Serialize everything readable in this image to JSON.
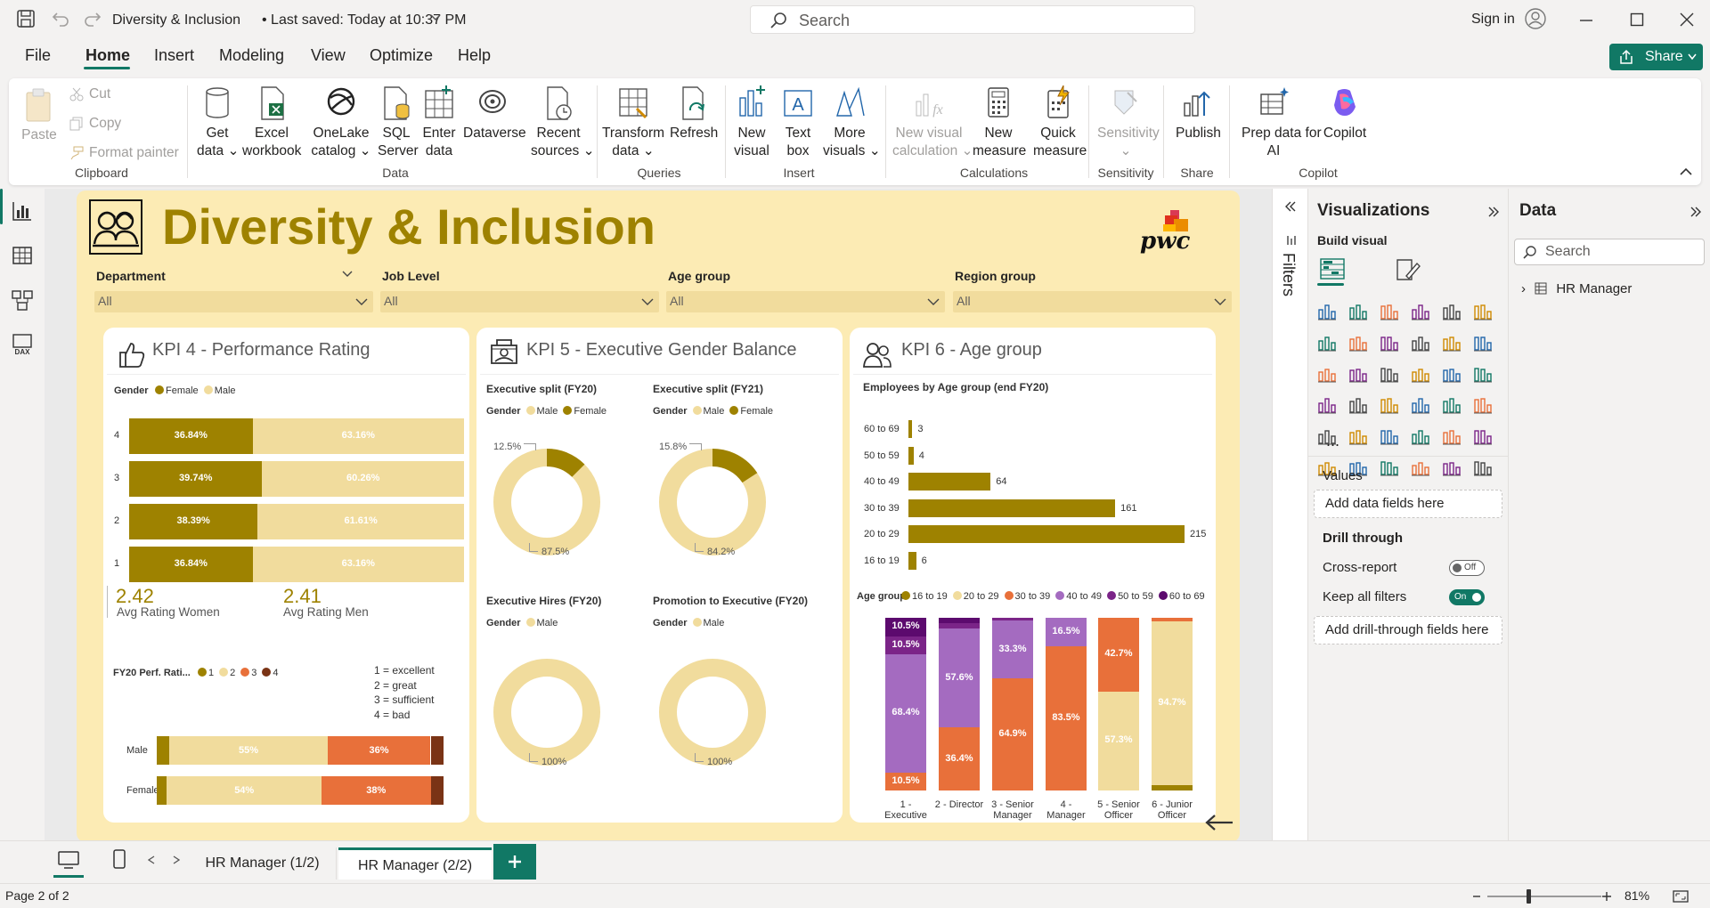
{
  "titlebar": {
    "doc_title": "Diversity & Inclusion",
    "saved": "• Last saved: Today at 10:37 PM",
    "search_placeholder": "Search",
    "sign_in": "Sign in"
  },
  "menu": {
    "items": [
      "File",
      "Home",
      "Insert",
      "Modeling",
      "View",
      "Optimize",
      "Help"
    ],
    "share": "Share"
  },
  "ribbon": {
    "paste": "Paste",
    "cut": "Cut",
    "copy": "Copy",
    "format_painter": "Format painter",
    "get_data": [
      "Get",
      "data"
    ],
    "excel": [
      "Excel",
      "workbook"
    ],
    "onelake": [
      "OneLake",
      "catalog"
    ],
    "sql": [
      "SQL",
      "Server"
    ],
    "enter": [
      "Enter",
      "data"
    ],
    "dataverse": "Dataverse",
    "recent": [
      "Recent",
      "sources"
    ],
    "transform": [
      "Transform",
      "data"
    ],
    "refresh": "Refresh",
    "new_visual": [
      "New",
      "visual"
    ],
    "text_box": [
      "Text",
      "box"
    ],
    "more_visuals": [
      "More",
      "visuals"
    ],
    "new_calc": [
      "New visual",
      "calculation"
    ],
    "new_measure": [
      "New",
      "measure"
    ],
    "quick_measure": [
      "Quick",
      "measure"
    ],
    "sensitivity": "Sensitivity",
    "publish": "Publish",
    "copilot": [
      "Prep data for",
      "AI",
      "Copilot"
    ],
    "groups": [
      "Clipboard",
      "Data",
      "Queries",
      "Insert",
      "Calculations",
      "Sensitivity",
      "Share",
      "Copilot"
    ]
  },
  "report": {
    "title": "Diversity & Inclusion",
    "logo_text": "pwc",
    "slicers": [
      {
        "label": "Department",
        "value": "All"
      },
      {
        "label": "Job Level",
        "value": "All"
      },
      {
        "label": "Age group",
        "value": "All"
      },
      {
        "label": "Region group",
        "value": "All"
      }
    ],
    "kpi4": {
      "title": "KPI 4 - Performance Rating",
      "legend_title": "Gender",
      "legend": [
        "Female",
        "Male"
      ],
      "rows": [
        {
          "label": "4",
          "female": "36.84%",
          "male": "63.16%",
          "f": 36.84
        },
        {
          "label": "3",
          "female": "39.74%",
          "male": "60.26%",
          "f": 39.74
        },
        {
          "label": "2",
          "female": "38.39%",
          "male": "61.61%",
          "f": 38.39
        },
        {
          "label": "1",
          "female": "36.84%",
          "male": "63.16%",
          "f": 36.84
        }
      ],
      "avg_women": "2.42",
      "avg_women_label": "Avg Rating Women",
      "avg_men": "2.41",
      "avg_men_label": "Avg Rating Men",
      "perf_legend_title": "FY20 Perf. Rati...",
      "perf_legend": [
        "1",
        "2",
        "3",
        "4"
      ],
      "scale": [
        "1 = excellent",
        "2 = great",
        "3 = sufficient",
        "4 = bad"
      ],
      "perf_rows": [
        {
          "label": "Male",
          "p2": "55%",
          "p3": "36%"
        },
        {
          "label": "Female",
          "p2": "54%",
          "p3": "38%"
        }
      ]
    },
    "kpi5": {
      "title": "KPI 5 - Executive Gender Balance",
      "donuts": [
        {
          "title": "Executive split (FY20)",
          "legend_title": "Gender",
          "legend": [
            "Male",
            "Female"
          ],
          "small": "12.5%",
          "big": "87.5%",
          "frac": 0.125
        },
        {
          "title": "Executive split (FY21)",
          "legend_title": "Gender",
          "legend": [
            "Male",
            "Female"
          ],
          "small": "15.8%",
          "big": "84.2%",
          "frac": 0.158
        },
        {
          "title": "Executive Hires (FY20)",
          "legend_title": "Gender",
          "legend": [
            "Male"
          ],
          "big": "100%",
          "frac": 0
        },
        {
          "title": "Promotion to Executive (FY20)",
          "legend_title": "Gender",
          "legend": [
            "Male"
          ],
          "big": "100%",
          "frac": 0
        }
      ]
    },
    "kpi6": {
      "title": "KPI 6 - Age group",
      "bar_title": "Employees by Age group (end FY20)",
      "bars": [
        {
          "label": "60 to 69",
          "value": 3
        },
        {
          "label": "50 to 59",
          "value": 4
        },
        {
          "label": "40 to 49",
          "value": 64
        },
        {
          "label": "30 to 39",
          "value": 161
        },
        {
          "label": "20 to 29",
          "value": 215
        },
        {
          "label": "16 to 19",
          "value": 6
        }
      ],
      "legend_title": "Age group",
      "legend": [
        "16 to 19",
        "20 to 29",
        "30 to 39",
        "40 to 49",
        "50 to 59",
        "60 to 69"
      ],
      "colors": [
        "#9e8200",
        "#f1dc9d",
        "#e8703a",
        "#a46bc0",
        "#7b2488",
        "#5c0a6e"
      ],
      "stacks": [
        {
          "label": [
            "1 -",
            "Executive"
          ],
          "segments": [
            [
              3,
              10.5
            ],
            [
              4,
              68.4
            ],
            [
              5,
              10.5
            ],
            [
              6,
              10.5
            ]
          ],
          "labels": [
            "10.5%",
            "68.4%",
            "10.5%",
            "10.5%"
          ]
        },
        {
          "label": [
            "2 - Director"
          ],
          "segments": [
            [
              3,
              36.4
            ],
            [
              4,
              57.6
            ],
            [
              5,
              3
            ],
            [
              6,
              3
            ]
          ],
          "labels": [
            "36.4%",
            "57.6%"
          ]
        },
        {
          "label": [
            "3 - Senior",
            "Manager"
          ],
          "segments": [
            [
              3,
              64.9
            ],
            [
              4,
              33.3
            ],
            [
              5,
              1.8
            ]
          ],
          "labels": [
            "64.9%",
            "33.3%"
          ]
        },
        {
          "label": [
            "4 -",
            "Manager"
          ],
          "segments": [
            [
              3,
              83.5
            ],
            [
              4,
              16.5
            ]
          ],
          "labels": [
            "83.5%",
            "16.5%"
          ]
        },
        {
          "label": [
            "5 - Senior",
            "Officer"
          ],
          "segments": [
            [
              2,
              57.3
            ],
            [
              3,
              42.7
            ]
          ],
          "labels": [
            "57.3%",
            "42.7%"
          ]
        },
        {
          "label": [
            "6 - Junior",
            "Officer"
          ],
          "segments": [
            [
              1,
              3.3
            ],
            [
              2,
              94.7
            ],
            [
              3,
              2
            ]
          ],
          "labels": [
            "94.7%"
          ]
        }
      ]
    }
  },
  "filters_label": "Filters",
  "visualizations": {
    "title": "Visualizations",
    "build": "Build visual",
    "values": "Values",
    "add_fields": "Add data fields here",
    "drill": "Drill through",
    "cross": "Cross-report",
    "cross_state": "Off",
    "keep": "Keep all filters",
    "keep_state": "On",
    "add_drill": "Add drill-through fields here",
    "more": "..."
  },
  "data_pane": {
    "title": "Data",
    "search": "Search",
    "table": "HR Manager"
  },
  "tabs": [
    "HR Manager (1/2)",
    "HR Manager (2/2)"
  ],
  "status": {
    "page": "Page 2 of 2",
    "zoom": "81%"
  }
}
